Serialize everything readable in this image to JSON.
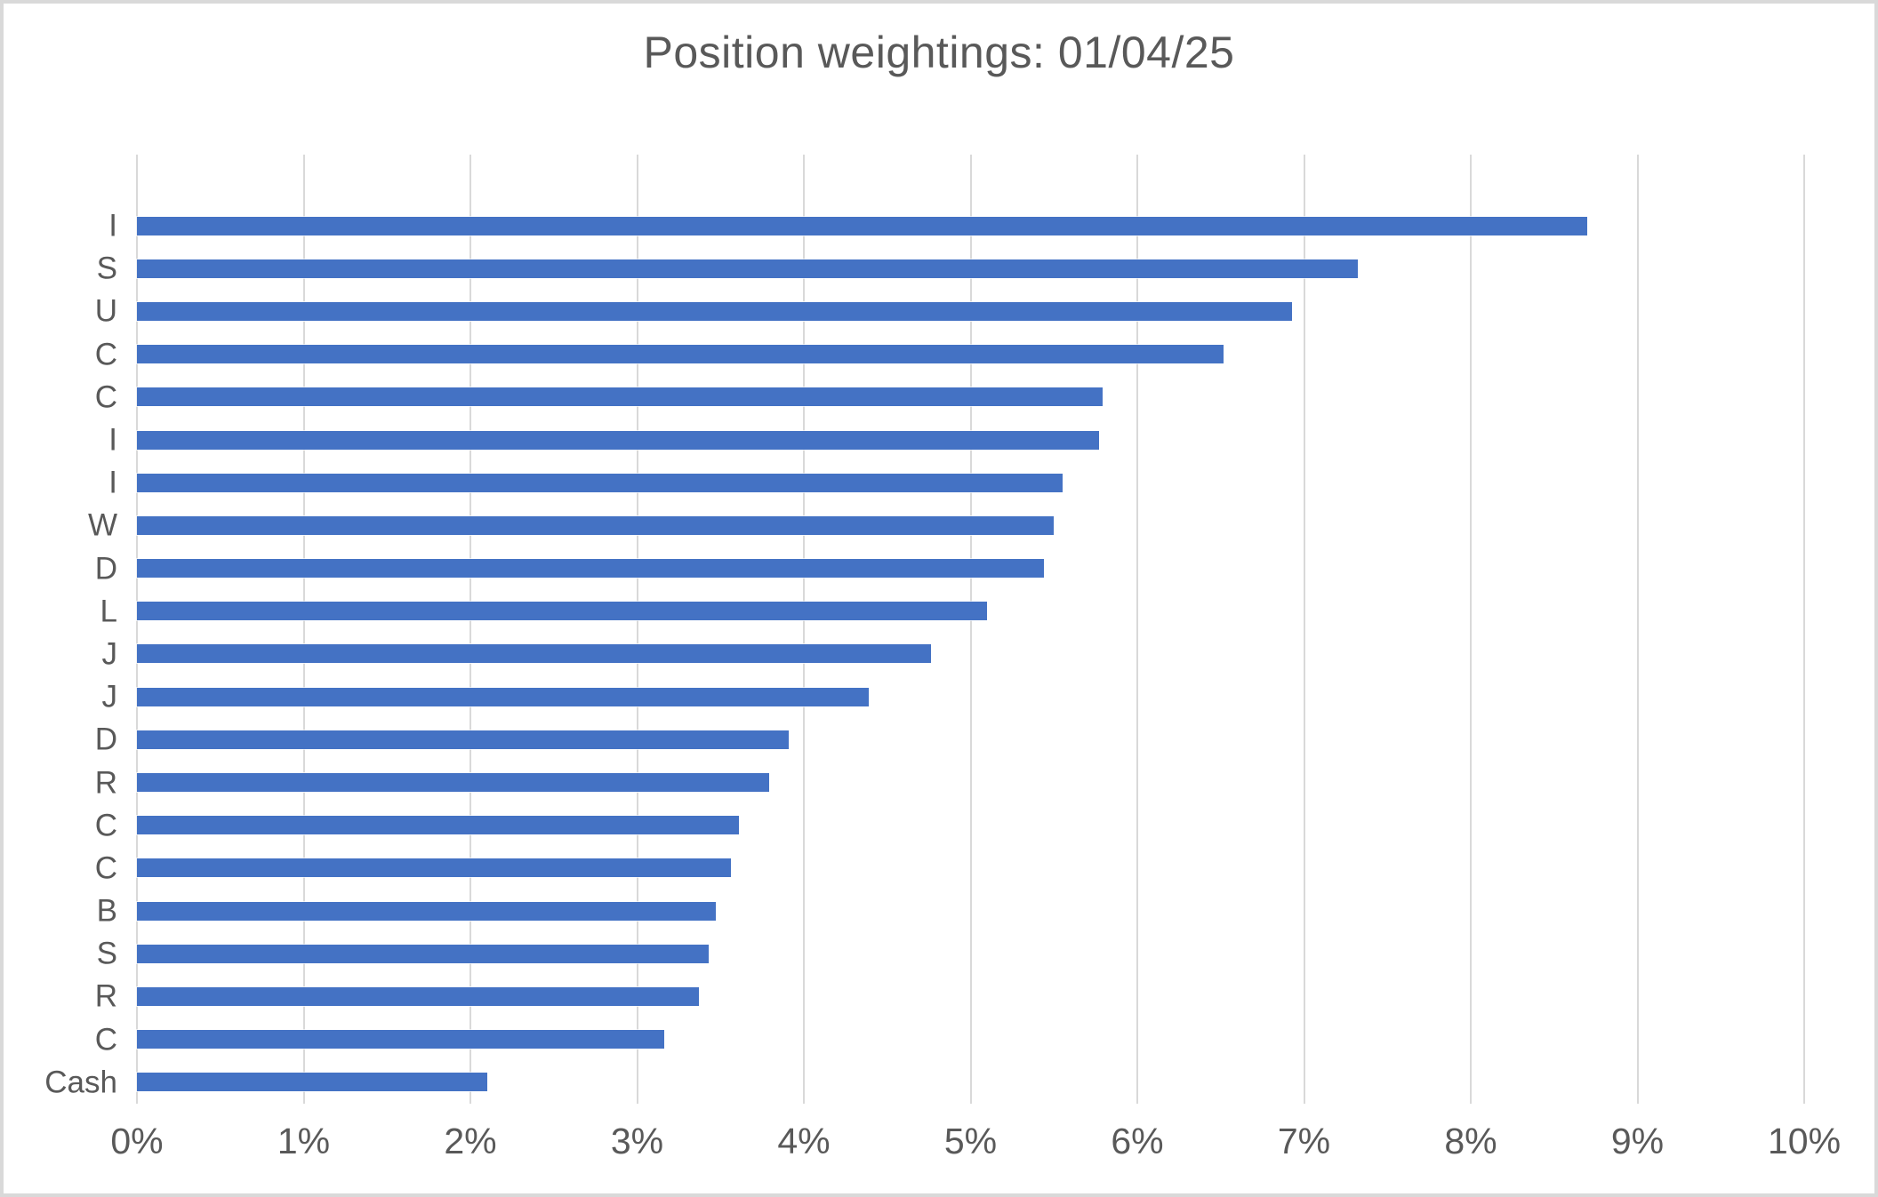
{
  "chart_data": {
    "type": "bar",
    "orientation": "horizontal",
    "title": "Position weightings: 01/04/25",
    "categories": [
      "I",
      "S",
      "U",
      "C",
      "C",
      "I",
      "I",
      "W",
      "D",
      "L",
      "J",
      "J",
      "D",
      "R",
      "C",
      "C",
      "B",
      "S",
      "R",
      "C",
      "Cash"
    ],
    "values": [
      8.7,
      7.32,
      6.93,
      6.52,
      5.79,
      5.77,
      5.55,
      5.5,
      5.44,
      5.1,
      4.76,
      4.39,
      3.91,
      3.79,
      3.61,
      3.56,
      3.47,
      3.43,
      3.37,
      3.16,
      2.1
    ],
    "value_unit": "%",
    "xlabel": "",
    "ylabel": "",
    "xlim": [
      0,
      10
    ],
    "x_ticks": [
      "0%",
      "1%",
      "2%",
      "3%",
      "4%",
      "5%",
      "6%",
      "7%",
      "8%",
      "9%",
      "10%"
    ],
    "grid": "vertical",
    "legend": "none",
    "colors": {
      "bar": "#4472C4",
      "gridline": "#D9D9D9",
      "axis_text": "#595959",
      "title_text": "#595959",
      "frame_border": "#D9D9D9",
      "background": "#FFFFFF"
    }
  }
}
